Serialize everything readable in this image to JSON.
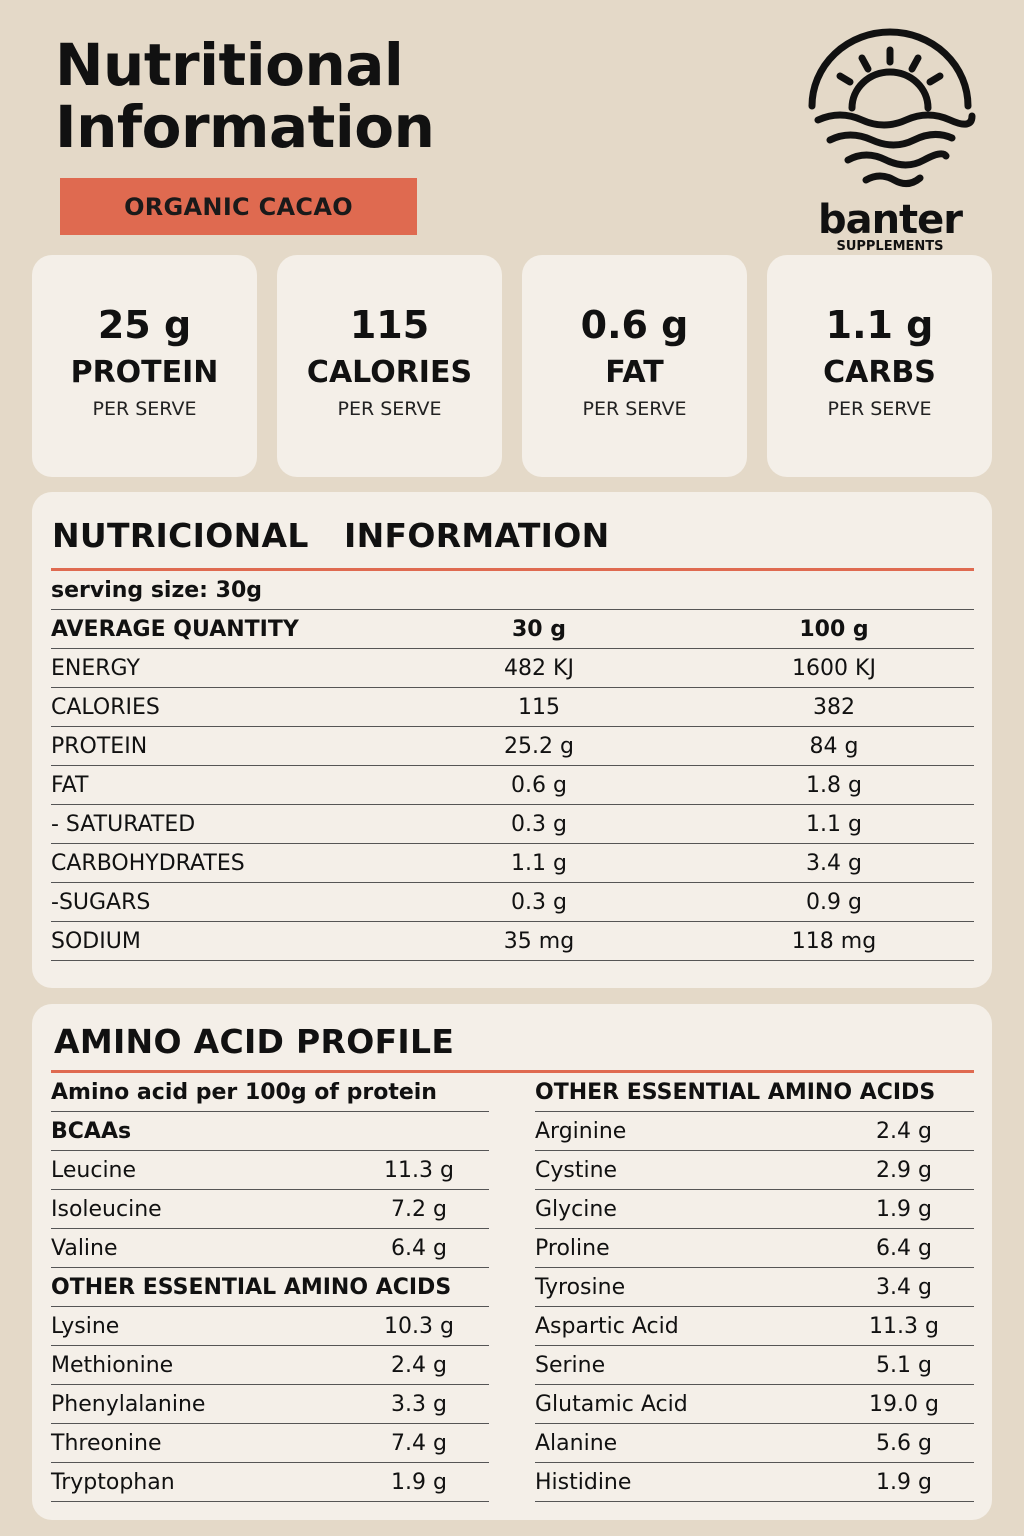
{
  "header": {
    "title_line1": "Nutritional",
    "title_line2": "Information",
    "flavor": "ORGANIC CACAO"
  },
  "logo": {
    "icon": "sun-over-waves-icon",
    "brand": "banter",
    "sub": "SUPPLEMENTS"
  },
  "cards": [
    {
      "value": "25 g",
      "label": "PROTEIN",
      "sub": "PER SERVE"
    },
    {
      "value": "115",
      "label": "CALORIES",
      "sub": "PER SERVE"
    },
    {
      "value": "0.6 g",
      "label": "FAT",
      "sub": "PER SERVE"
    },
    {
      "value": "1.1 g",
      "label": "CARBS",
      "sub": "PER SERVE"
    }
  ],
  "nutrition": {
    "title": "NUTRICIONAL   INFORMATION",
    "serving": "serving size: 30g",
    "header": {
      "name": "AVERAGE QUANTITY",
      "per_serve": "30 g",
      "per_100": "100 g"
    },
    "rows": [
      {
        "name": "ENERGY",
        "per_serve": "482 KJ",
        "per_100": "1600 KJ"
      },
      {
        "name": "CALORIES",
        "per_serve": "115",
        "per_100": "382"
      },
      {
        "name": "PROTEIN",
        "per_serve": "25.2 g",
        "per_100": "84 g"
      },
      {
        "name": "FAT",
        "per_serve": "0.6 g",
        "per_100": "1.8 g"
      },
      {
        "name": "- SATURATED",
        "per_serve": "0.3 g",
        "per_100": "1.1 g"
      },
      {
        "name": "CARBOHYDRATES",
        "per_serve": "1.1 g",
        "per_100": "3.4 g"
      },
      {
        "name": "-SUGARS",
        "per_serve": "0.3 g",
        "per_100": "0.9 g"
      },
      {
        "name": "SODIUM",
        "per_serve": "35 mg",
        "per_100": "118 mg"
      }
    ]
  },
  "amino": {
    "title": "AMINO ACID PROFILE",
    "left": {
      "intro": "Amino acid per 100g of protein",
      "bcaa_heading": "BCAAs",
      "bcaas": [
        {
          "name": "Leucine",
          "value": "11.3 g"
        },
        {
          "name": "Isoleucine",
          "value": "7.2 g"
        },
        {
          "name": "Valine",
          "value": "6.4 g"
        }
      ],
      "essential_heading": "OTHER ESSENTIAL AMINO ACIDS",
      "essential": [
        {
          "name": "Lysine",
          "value": "10.3 g"
        },
        {
          "name": "Methionine",
          "value": "2.4 g"
        },
        {
          "name": "Phenylalanine",
          "value": "3.3 g"
        },
        {
          "name": "Threonine",
          "value": "7.4 g"
        },
        {
          "name": "Tryptophan",
          "value": "1.9 g"
        }
      ]
    },
    "right": {
      "heading": "OTHER ESSENTIAL AMINO ACIDS",
      "items": [
        {
          "name": "Arginine",
          "value": "2.4 g"
        },
        {
          "name": "Cystine",
          "value": "2.9 g"
        },
        {
          "name": "Glycine",
          "value": "1.9 g"
        },
        {
          "name": "Proline",
          "value": "6.4 g"
        },
        {
          "name": "Tyrosine",
          "value": "3.4 g"
        },
        {
          "name": "Aspartic Acid",
          "value": "11.3 g"
        },
        {
          "name": "Serine",
          "value": "5.1 g"
        },
        {
          "name": "Glutamic Acid",
          "value": "19.0 g"
        },
        {
          "name": "Alanine",
          "value": "5.6 g"
        },
        {
          "name": "Histidine",
          "value": "1.9 g"
        }
      ]
    }
  }
}
